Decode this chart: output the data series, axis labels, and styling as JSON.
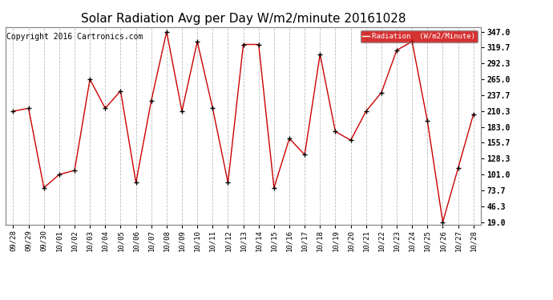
{
  "title": "Solar Radiation Avg per Day W/m2/minute 20161028",
  "copyright_text": "Copyright 2016 Cartronics.com",
  "legend_label": "Radiation  (W/m2/Minute)",
  "dates": [
    "09/28",
    "09/29",
    "09/30",
    "10/01",
    "10/02",
    "10/03",
    "10/04",
    "10/05",
    "10/06",
    "10/07",
    "10/08",
    "10/09",
    "10/10",
    "10/11",
    "10/12",
    "10/13",
    "10/14",
    "10/15",
    "10/16",
    "10/17",
    "10/18",
    "10/19",
    "10/20",
    "10/21",
    "10/22",
    "10/23",
    "10/24",
    "10/25",
    "10/26",
    "10/27",
    "10/28"
  ],
  "values": [
    210.0,
    215.0,
    78.0,
    101.0,
    108.0,
    265.0,
    215.0,
    245.0,
    87.0,
    228.0,
    347.0,
    210.0,
    330.0,
    215.0,
    87.0,
    325.0,
    325.0,
    78.0,
    163.0,
    135.0,
    308.0,
    175.0,
    160.0,
    210.0,
    242.0,
    315.0,
    330.0,
    193.0,
    19.0,
    112.0,
    205.0
  ],
  "yticks": [
    19.0,
    46.3,
    73.7,
    101.0,
    128.3,
    155.7,
    183.0,
    210.3,
    237.7,
    265.0,
    292.3,
    319.7,
    347.0
  ],
  "ymin": 19.0,
  "ymax": 347.0,
  "line_color": "#cc0000",
  "marker_color": "#000000",
  "background_color": "#ffffff",
  "plot_bg_color": "#ffffff",
  "grid_color": "#bbbbbb",
  "title_fontsize": 11,
  "copyright_fontsize": 7,
  "legend_bg": "#cc0000",
  "legend_text_color": "#ffffff",
  "legend_font": "monospace"
}
